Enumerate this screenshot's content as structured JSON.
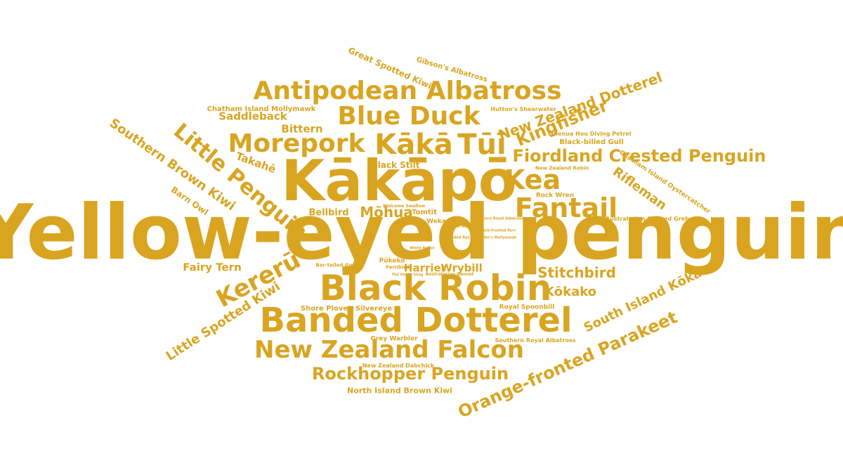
{
  "word_color": "#d9a521",
  "background_color": "#ffffff",
  "words": [
    "Yellow-eyed penguin",
    "Kākāpō",
    "Black Robin",
    "Banded Dotterel",
    "Antipodean Albatross",
    "Blue Duck",
    "Kākā",
    "Tūī",
    "Morepork",
    "Kea",
    "Fantail",
    "New Zealand Falcon",
    "Little Penguin",
    "Kererū",
    "Fiordland Crested Penguin",
    "Orange-fronted Parakeet",
    "Rockhopper Penguin",
    "Kingfisher",
    "New Zealand Dotterel",
    "Southern Brown Kiwi",
    "Little Spotted Kiwi",
    "South Island Kōkako",
    "Stitchbird",
    "Kōkako",
    "Rifleman",
    "Saddleback",
    "Takahē",
    "Mōhua",
    "Bittern",
    "Fairy Tern",
    "Harrier",
    "Wrybill",
    "Bellbird",
    "Barn Owl",
    "Great Spotted Kiwi",
    "Gibson's Albatross",
    "Chatham Island Mollymawk",
    "Hutton's Shearwater",
    "Black Stilt",
    "Black-billed Gull",
    "Whenua Hou Diving Petrel",
    "New Zealand Robin",
    "Chatham Island Oystercatcher",
    "Rock Wren",
    "Australasian Crested Grebe",
    "Shore Plover",
    "Silvereye",
    "Royal Spoonbill",
    "Grey Warbler",
    "Southern Royal Albatross",
    "New Zealand Dabchick",
    "North Island Brown Kiwi",
    "Pūkeko",
    "Tomtit",
    "Weka",
    "Bar-tailed Godwit",
    "Fernbird",
    "The Otago Shag",
    "Australasian Gannet",
    "Welcome Swallow",
    "Southern Royal Albatross",
    "Black-fronted Tern",
    "Buller's Mollymawk",
    "White Heron",
    "Banded Rail",
    "Brown Teal"
  ]
}
